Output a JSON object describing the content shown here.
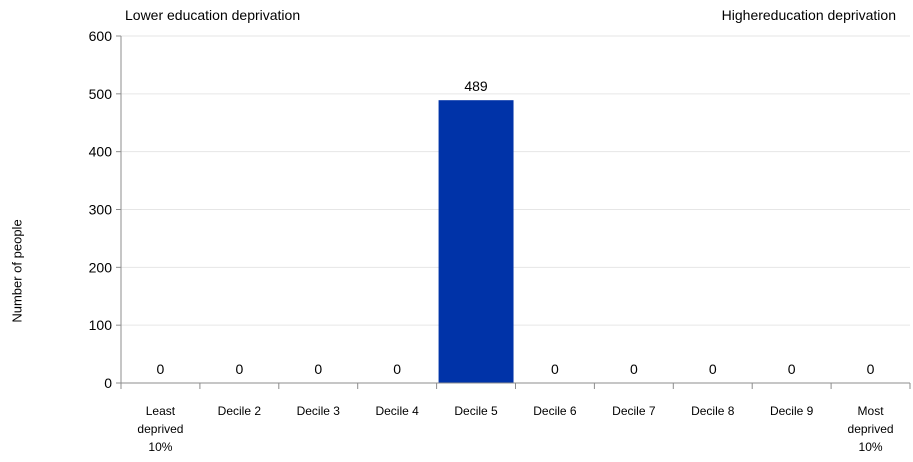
{
  "notes": {
    "left": "Lower education deprivation",
    "right": "Highereducation deprivation"
  },
  "chart_data": {
    "type": "bar",
    "title": "",
    "xlabel": "",
    "ylabel": "Number of people",
    "categories": [
      "Least\ndeprived\n10%",
      "Decile 2",
      "Decile 3",
      "Decile 4",
      "Decile 5",
      "Decile 6",
      "Decile 7",
      "Decile 8",
      "Decile 9",
      "Most\ndeprived\n10%"
    ],
    "values": [
      0,
      0,
      0,
      0,
      489,
      0,
      0,
      0,
      0,
      0
    ],
    "data_labels": [
      "0",
      "0",
      "0",
      "0",
      "489",
      "0",
      "0",
      "0",
      "0",
      "0"
    ],
    "ylim": [
      0,
      600
    ],
    "yticks": [
      0,
      100,
      200,
      300,
      400,
      500,
      600
    ],
    "grid": true,
    "bar_color": "#0033a8",
    "legend": "none"
  }
}
